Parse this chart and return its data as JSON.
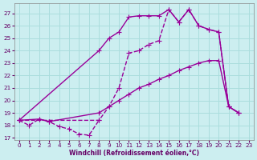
{
  "background_color": "#cceef0",
  "grid_color": "#aadddd",
  "line_color": "#990099",
  "xlabel": "Windchill (Refroidissement éolien,°C)",
  "xlabel_color": "#660066",
  "tick_color": "#660066",
  "xlim": [
    -0.5,
    23.5
  ],
  "ylim": [
    16.8,
    27.8
  ],
  "yticks": [
    17,
    18,
    19,
    20,
    21,
    22,
    23,
    24,
    25,
    26,
    27
  ],
  "xticks": [
    0,
    1,
    2,
    3,
    4,
    5,
    6,
    7,
    8,
    9,
    10,
    11,
    12,
    13,
    14,
    15,
    16,
    17,
    18,
    19,
    20,
    21,
    22,
    23
  ],
  "line1_x": [
    0,
    1,
    2,
    3,
    4,
    5,
    6,
    7,
    8
  ],
  "line1_y": [
    18.4,
    18.0,
    18.5,
    18.3,
    17.9,
    17.7,
    17.3,
    17.2,
    18.4
  ],
  "line1_style": "--",
  "line2_x": [
    0,
    2,
    3,
    8,
    9,
    10,
    11,
    12,
    13,
    14,
    15,
    16,
    17,
    18,
    19,
    20,
    21,
    22
  ],
  "line2_y": [
    18.4,
    18.5,
    18.3,
    19.0,
    19.5,
    20.0,
    20.5,
    21.0,
    21.3,
    21.7,
    22.0,
    22.4,
    22.7,
    23.0,
    23.2,
    23.2,
    19.5,
    19.0
  ],
  "line2_style": "-",
  "line3_x": [
    0,
    8,
    9,
    10,
    11,
    12,
    13,
    14,
    15,
    16,
    17,
    18,
    19,
    20,
    21,
    22
  ],
  "line3_y": [
    18.4,
    24.0,
    25.0,
    25.5,
    26.7,
    26.8,
    26.8,
    26.8,
    27.3,
    26.3,
    27.3,
    26.0,
    25.7,
    25.5,
    19.5,
    19.0
  ],
  "line3_style": "-",
  "line4_x": [
    0,
    8,
    9,
    10,
    11,
    12,
    13,
    14,
    15,
    16,
    17,
    18,
    19,
    20,
    21,
    22
  ],
  "line4_y": [
    18.4,
    18.4,
    19.5,
    21.0,
    23.8,
    24.0,
    24.5,
    24.8,
    27.3,
    26.3,
    27.3,
    26.0,
    25.7,
    25.5,
    19.5,
    19.0
  ],
  "line4_style": "--"
}
